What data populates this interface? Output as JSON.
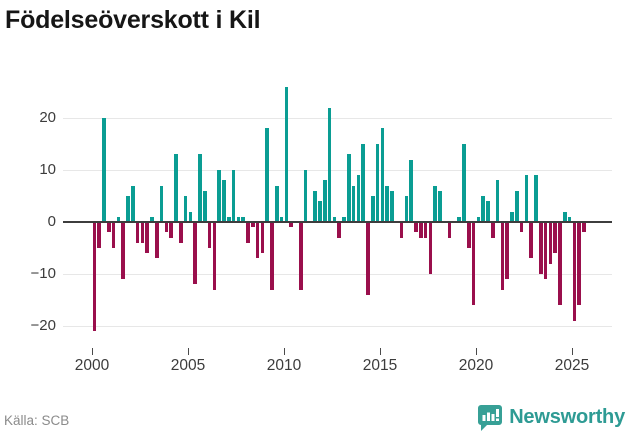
{
  "header": {
    "title": "Födelseöverskott i Kil"
  },
  "footer": {
    "source": "Källa: SCB",
    "brand": "Newsworthy",
    "brand_color": "#2e9b94",
    "brand_icon": "newsworthy-bubble-barchart-icon"
  },
  "chart_data": {
    "type": "bar",
    "title": "Födelseöverskott i Kil",
    "frequency": "quarterly",
    "start_year": 2000,
    "start_quarter": 1,
    "values": [
      -21,
      -5,
      20,
      -2,
      -5,
      1,
      -11,
      5,
      7,
      -4,
      -4,
      -6,
      1,
      -7,
      7,
      -2,
      -3,
      13,
      -4,
      5,
      2,
      -12,
      13,
      6,
      -5,
      -13,
      10,
      8,
      1,
      10,
      1,
      1,
      -4,
      -1,
      -7,
      -6,
      18,
      -13,
      7,
      1,
      26,
      -1,
      0,
      -13,
      10,
      0,
      6,
      4,
      8,
      22,
      1,
      -3,
      1,
      13,
      7,
      9,
      15,
      -14,
      5,
      15,
      18,
      7,
      6,
      0,
      -3,
      5,
      12,
      -2,
      -3,
      -3,
      -10,
      7,
      6,
      0,
      -3,
      0,
      1,
      15,
      -5,
      -16,
      1,
      5,
      4,
      -3,
      8,
      -13,
      -11,
      2,
      6,
      -2,
      9,
      -7,
      9,
      -10,
      -11,
      -8,
      -6,
      -16,
      2,
      1,
      -19,
      -16,
      -2
    ],
    "positive_color": "#0a9d93",
    "negative_color": "#9a0f4c",
    "yticks": [
      {
        "value": 20,
        "label": "20"
      },
      {
        "value": 10,
        "label": "10"
      },
      {
        "value": 0,
        "label": "0"
      },
      {
        "value": -10,
        "label": "−10"
      },
      {
        "value": -20,
        "label": "−20"
      }
    ],
    "xticks": [
      {
        "year": 2000,
        "label": "2000"
      },
      {
        "year": 2005,
        "label": "2005"
      },
      {
        "year": 2010,
        "label": "2010"
      },
      {
        "year": 2015,
        "label": "2015"
      },
      {
        "year": 2020,
        "label": "2020"
      },
      {
        "year": 2025,
        "label": "2025"
      }
    ],
    "ylim": [
      -23.5,
      28
    ],
    "xlabel": "",
    "ylabel": "",
    "grid": "horizontal",
    "legend": "none"
  }
}
